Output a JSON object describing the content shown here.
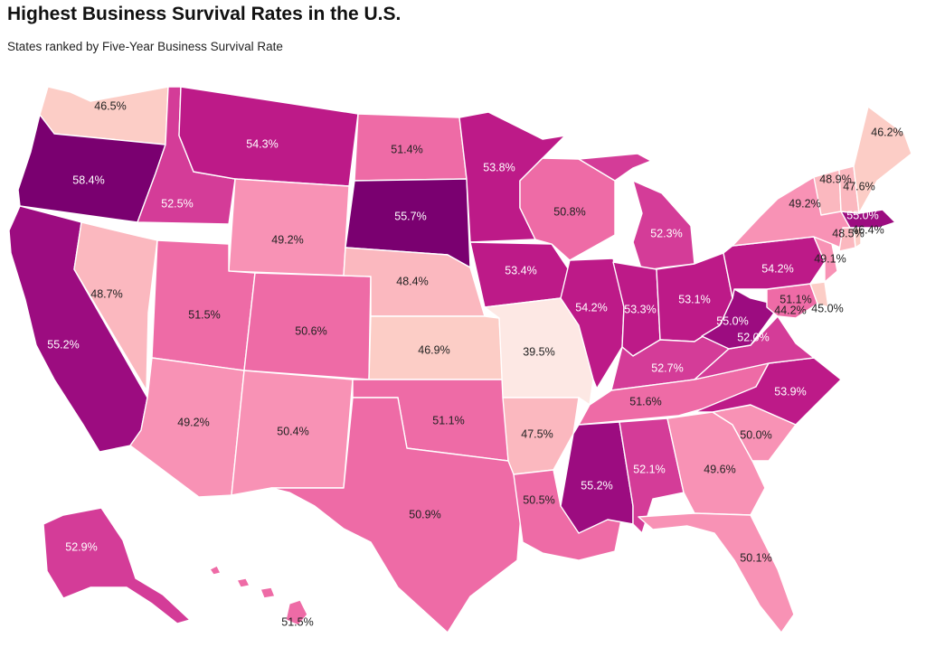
{
  "title": "Highest Business Survival Rates in the U.S.",
  "subtitle": "States ranked by Five-Year Business Survival Rate",
  "colors": {
    "background": "#ffffff",
    "scale": [
      "#fde8e4",
      "#fccdc6",
      "#fbb8bf",
      "#f892b5",
      "#ee6ba6",
      "#d43c98",
      "#bd1a88",
      "#9c0c80",
      "#7a0070"
    ],
    "light_text": "#ffffff",
    "dark_text": "#222222"
  },
  "chart_data": {
    "type": "choropleth",
    "metric": "Five-Year Business Survival Rate",
    "unit": "%",
    "states": [
      {
        "state": "WA",
        "value": 46.5,
        "label": "46.5%"
      },
      {
        "state": "OR",
        "value": 58.4,
        "label": "58.4%"
      },
      {
        "state": "CA",
        "value": 55.2,
        "label": "55.2%"
      },
      {
        "state": "NV",
        "value": 48.7,
        "label": "48.7%"
      },
      {
        "state": "ID",
        "value": 52.5,
        "label": "52.5%"
      },
      {
        "state": "MT",
        "value": 54.3,
        "label": "54.3%"
      },
      {
        "state": "WY",
        "value": 49.2,
        "label": "49.2%"
      },
      {
        "state": "UT",
        "value": 51.5,
        "label": "51.5%"
      },
      {
        "state": "AZ",
        "value": 49.2,
        "label": "49.2%"
      },
      {
        "state": "CO",
        "value": 50.6,
        "label": "50.6%"
      },
      {
        "state": "NM",
        "value": 50.4,
        "label": "50.4%"
      },
      {
        "state": "ND",
        "value": 51.4,
        "label": "51.4%"
      },
      {
        "state": "SD",
        "value": 55.7,
        "label": "55.7%"
      },
      {
        "state": "NE",
        "value": 48.4,
        "label": "48.4%"
      },
      {
        "state": "KS",
        "value": 46.9,
        "label": "46.9%"
      },
      {
        "state": "OK",
        "value": 51.1,
        "label": "51.1%"
      },
      {
        "state": "TX",
        "value": 50.9,
        "label": "50.9%"
      },
      {
        "state": "MN",
        "value": 53.8,
        "label": "53.8%"
      },
      {
        "state": "IA",
        "value": 53.4,
        "label": "53.4%"
      },
      {
        "state": "MO",
        "value": 39.5,
        "label": "39.5%"
      },
      {
        "state": "AR",
        "value": 47.5,
        "label": "47.5%"
      },
      {
        "state": "LA",
        "value": 50.5,
        "label": "50.5%"
      },
      {
        "state": "WI",
        "value": 50.8,
        "label": "50.8%"
      },
      {
        "state": "IL",
        "value": 54.2,
        "label": "54.2%"
      },
      {
        "state": "MI",
        "value": 52.3,
        "label": "52.3%"
      },
      {
        "state": "IN",
        "value": 53.3,
        "label": "53.3%"
      },
      {
        "state": "OH",
        "value": 53.1,
        "label": "53.1%"
      },
      {
        "state": "KY",
        "value": 52.7,
        "label": "52.7%"
      },
      {
        "state": "TN",
        "value": 51.6,
        "label": "51.6%"
      },
      {
        "state": "MS",
        "value": 55.2,
        "label": "55.2%"
      },
      {
        "state": "AL",
        "value": 52.1,
        "label": "52.1%"
      },
      {
        "state": "GA",
        "value": 49.6,
        "label": "49.6%"
      },
      {
        "state": "FL",
        "value": 50.1,
        "label": "50.1%"
      },
      {
        "state": "SC",
        "value": 50.0,
        "label": "50.0%"
      },
      {
        "state": "NC",
        "value": 53.9,
        "label": "53.9%"
      },
      {
        "state": "VA",
        "value": 52.0,
        "label": "52.0%"
      },
      {
        "state": "WV",
        "value": 55.0,
        "label": "55.0%"
      },
      {
        "state": "MD",
        "value": 51.1,
        "label": "51.1%"
      },
      {
        "state": "DE",
        "value": 45.0,
        "label": "45.0%"
      },
      {
        "state": "DC",
        "value": 44.2,
        "label": "44.2%"
      },
      {
        "state": "PA",
        "value": 54.2,
        "label": "54.2%"
      },
      {
        "state": "NJ",
        "value": 49.1,
        "label": "49.1%"
      },
      {
        "state": "NY",
        "value": 49.2,
        "label": "49.2%"
      },
      {
        "state": "CT",
        "value": 48.5,
        "label": "48.5%"
      },
      {
        "state": "RI",
        "value": 46.4,
        "label": "46.4%"
      },
      {
        "state": "MA",
        "value": 55.0,
        "label": "55.0%"
      },
      {
        "state": "VT",
        "value": 48.9,
        "label": "48.9%"
      },
      {
        "state": "NH",
        "value": 47.6,
        "label": "47.6%"
      },
      {
        "state": "ME",
        "value": 46.2,
        "label": "46.2%"
      },
      {
        "state": "AK",
        "value": 52.9,
        "label": "52.9%"
      },
      {
        "state": "HI",
        "value": 51.5,
        "label": "51.5%"
      }
    ]
  }
}
